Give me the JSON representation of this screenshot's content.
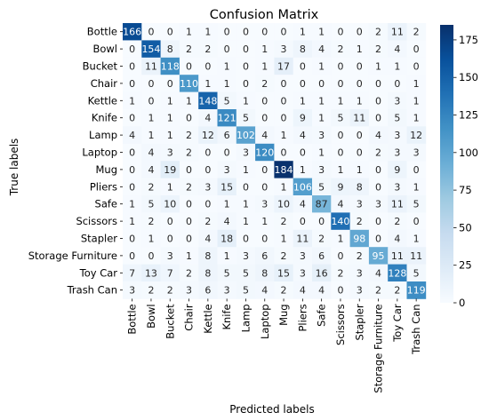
{
  "chart_data": {
    "type": "heatmap",
    "title": "Confusion Matrix",
    "xlabel": "Predicted labels",
    "ylabel": "True labels",
    "categories": [
      "Bottle",
      "Bowl",
      "Bucket",
      "Chair",
      "Kettle",
      "Knife",
      "Lamp",
      "Laptop",
      "Mug",
      "Pliers",
      "Safe",
      "Scissors",
      "Stapler",
      "Storage Furniture",
      "Toy Car",
      "Trash Can"
    ],
    "matrix": [
      [
        166,
        0,
        0,
        1,
        1,
        0,
        0,
        0,
        0,
        1,
        1,
        0,
        0,
        2,
        11,
        2
      ],
      [
        0,
        154,
        8,
        2,
        2,
        0,
        0,
        1,
        3,
        8,
        4,
        2,
        1,
        2,
        4,
        0
      ],
      [
        0,
        11,
        118,
        0,
        0,
        1,
        0,
        1,
        17,
        0,
        1,
        0,
        0,
        1,
        1,
        0
      ],
      [
        0,
        0,
        0,
        110,
        1,
        1,
        0,
        2,
        0,
        0,
        0,
        0,
        0,
        0,
        0,
        1
      ],
      [
        1,
        0,
        1,
        1,
        148,
        5,
        1,
        0,
        0,
        1,
        1,
        1,
        1,
        0,
        3,
        1
      ],
      [
        0,
        1,
        1,
        0,
        4,
        121,
        5,
        0,
        0,
        9,
        1,
        5,
        11,
        0,
        5,
        1
      ],
      [
        4,
        1,
        1,
        2,
        12,
        6,
        102,
        4,
        1,
        4,
        3,
        0,
        0,
        4,
        3,
        12
      ],
      [
        0,
        4,
        3,
        2,
        0,
        0,
        3,
        120,
        0,
        0,
        1,
        0,
        0,
        2,
        3,
        3
      ],
      [
        0,
        4,
        19,
        0,
        0,
        3,
        1,
        0,
        184,
        1,
        3,
        1,
        1,
        0,
        9,
        0
      ],
      [
        0,
        2,
        1,
        2,
        3,
        15,
        0,
        0,
        1,
        106,
        5,
        9,
        8,
        0,
        3,
        1
      ],
      [
        1,
        5,
        10,
        0,
        0,
        1,
        1,
        3,
        10,
        4,
        87,
        4,
        3,
        3,
        11,
        5
      ],
      [
        1,
        2,
        0,
        0,
        2,
        4,
        1,
        1,
        2,
        0,
        0,
        140,
        2,
        0,
        2,
        0
      ],
      [
        0,
        1,
        0,
        0,
        4,
        18,
        0,
        0,
        1,
        11,
        2,
        1,
        98,
        0,
        4,
        1
      ],
      [
        0,
        0,
        3,
        1,
        8,
        1,
        3,
        6,
        2,
        3,
        6,
        0,
        2,
        95,
        11,
        11
      ],
      [
        7,
        13,
        7,
        2,
        8,
        5,
        5,
        8,
        15,
        3,
        16,
        2,
        3,
        4,
        128,
        5
      ],
      [
        3,
        2,
        2,
        3,
        6,
        3,
        5,
        4,
        2,
        4,
        4,
        0,
        3,
        2,
        2,
        119
      ]
    ],
    "colorbar": {
      "range": [
        0,
        185
      ],
      "ticks": [
        0,
        25,
        50,
        75,
        100,
        125,
        150,
        175
      ],
      "colormap": "Blues"
    },
    "colors": {
      "low": "#f7fbff",
      "high": "#08306b",
      "dark_text_threshold": 92
    }
  }
}
